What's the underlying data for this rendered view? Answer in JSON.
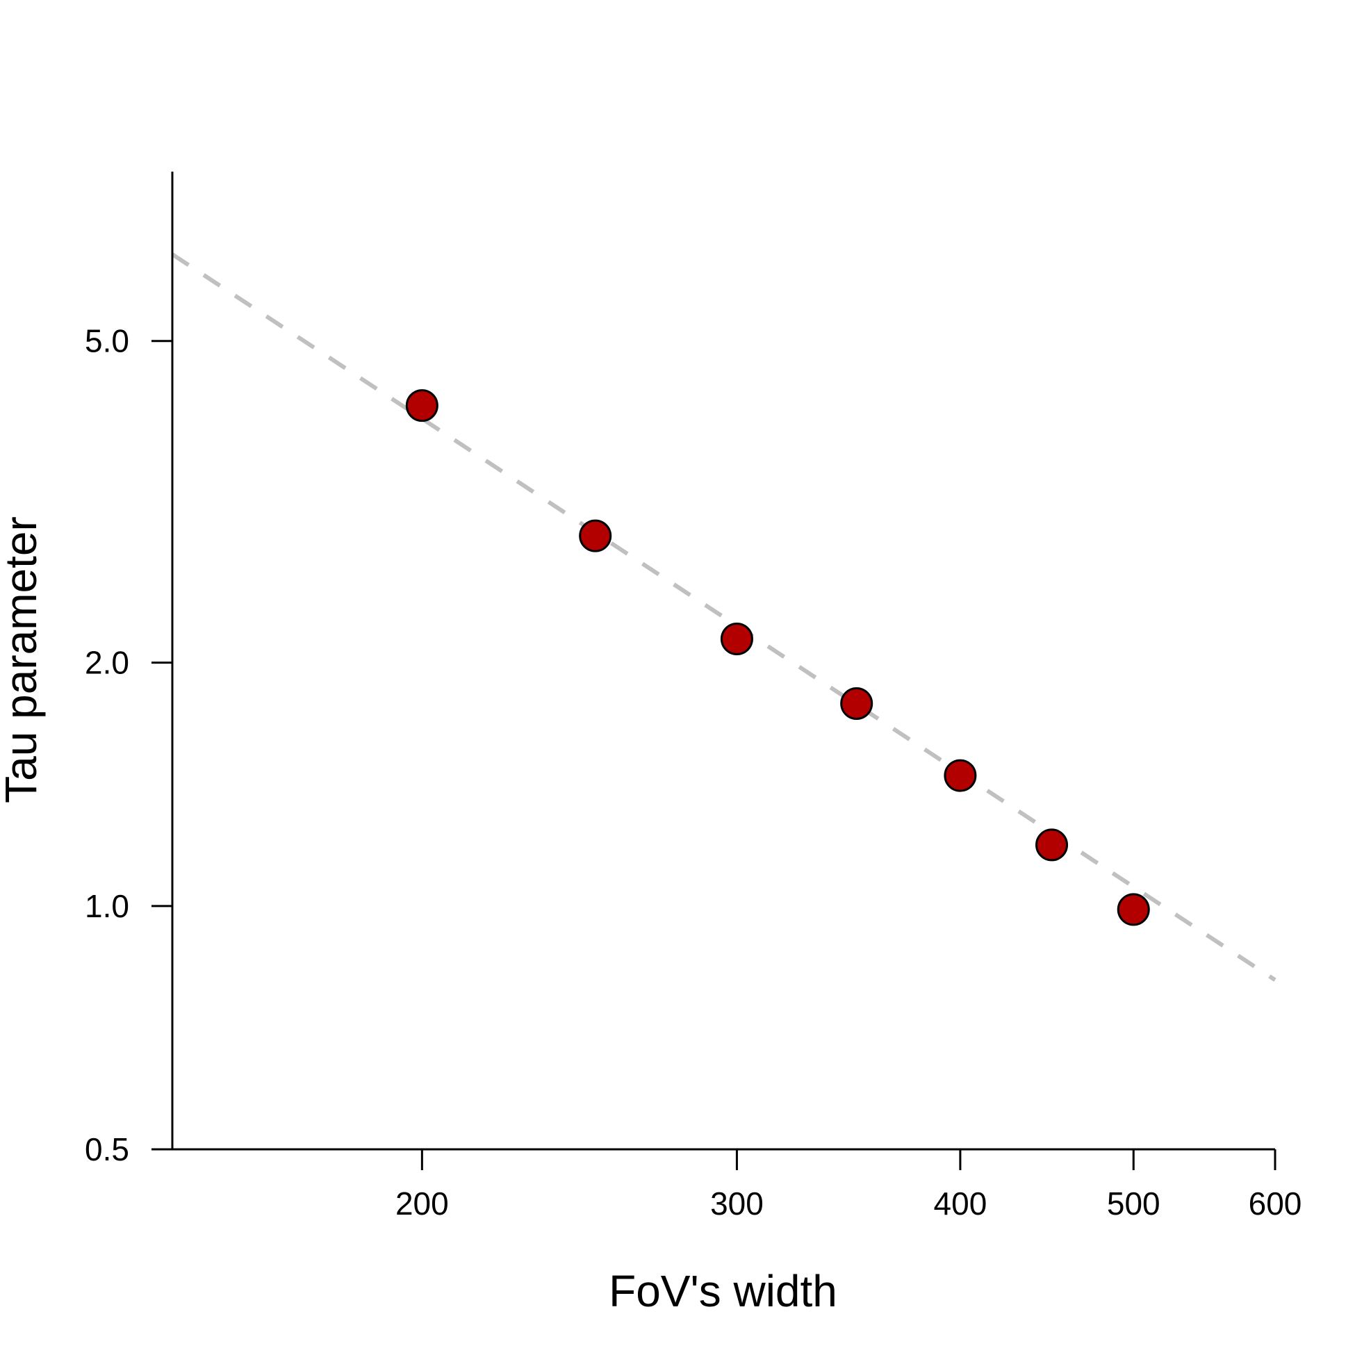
{
  "chart_data": {
    "type": "scatter",
    "title": "",
    "xlabel": "FoV's width",
    "ylabel": "Tau parameter",
    "x_scale": "log",
    "y_scale": "log",
    "x_ticks": [
      200,
      300,
      400,
      500,
      600
    ],
    "x_tick_labels": [
      "200",
      "300",
      "400",
      "500",
      "600"
    ],
    "y_ticks": [
      0.5,
      1.0,
      2.0,
      5.0
    ],
    "y_tick_labels": [
      "0.5",
      "1.0",
      "2.0",
      "5.0"
    ],
    "xlim": [
      145,
      600
    ],
    "ylim": [
      0.5,
      8.1
    ],
    "grid": false,
    "legend": "none",
    "series": [
      {
        "kind": "points",
        "x": [
          200,
          250,
          300,
          350,
          400,
          450,
          500
        ],
        "y": [
          4.16,
          2.87,
          2.14,
          1.78,
          1.45,
          1.19,
          0.99
        ],
        "color": "#b20000"
      },
      {
        "kind": "fit-line",
        "x": [
          145,
          600
        ],
        "y": [
          6.4,
          0.81
        ],
        "color": "#c0c0c0"
      }
    ]
  }
}
